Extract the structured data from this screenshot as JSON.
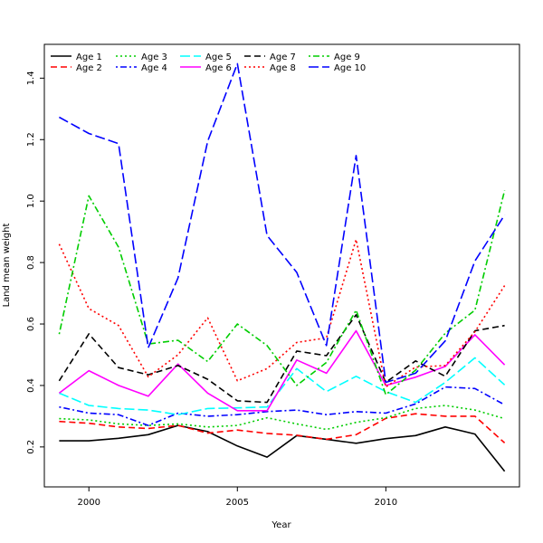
{
  "chart_data": {
    "type": "line",
    "title": "",
    "xlabel": "Year",
    "ylabel": "Land mean weight",
    "xlim": [
      1998.5,
      2014.5
    ],
    "ylim": [
      0.07,
      1.51
    ],
    "x_ticks": [
      2000,
      2005,
      2010
    ],
    "y_ticks": [
      0.2,
      0.4,
      0.6,
      0.8,
      1.0,
      1.2,
      1.4
    ],
    "y_tick_labels": [
      "0.2",
      "0.4",
      "0.6",
      "0.8",
      "1.0",
      "1.2",
      "1.4"
    ],
    "grid": false,
    "legend_position": "top-left",
    "x": [
      1999,
      2000,
      2001,
      2002,
      2003,
      2004,
      2005,
      2006,
      2007,
      2008,
      2009,
      2010,
      2011,
      2012,
      2013,
      2014
    ],
    "series": [
      {
        "name": "Age 1",
        "color": "#000000",
        "dash": "solid",
        "values": [
          0.22,
          0.22,
          0.228,
          0.24,
          0.27,
          0.25,
          0.203,
          0.167,
          0.237,
          0.225,
          0.212,
          0.227,
          0.237,
          0.265,
          0.242,
          0.121
        ]
      },
      {
        "name": "Age 2",
        "color": "#ff0000",
        "dash": "dashed",
        "values": [
          0.283,
          0.277,
          0.265,
          0.26,
          0.27,
          0.245,
          0.255,
          0.244,
          0.238,
          0.225,
          0.24,
          0.293,
          0.308,
          0.3,
          0.3,
          0.213
        ]
      },
      {
        "name": "Age 3",
        "color": "#00cd00",
        "dash": "dotted",
        "values": [
          0.292,
          0.288,
          0.275,
          0.27,
          0.275,
          0.265,
          0.27,
          0.295,
          0.275,
          0.257,
          0.28,
          0.295,
          0.325,
          0.335,
          0.32,
          0.292
        ]
      },
      {
        "name": "Age 4",
        "color": "#0000ff",
        "dash": "dotdash",
        "values": [
          0.33,
          0.31,
          0.305,
          0.27,
          0.31,
          0.3,
          0.305,
          0.315,
          0.32,
          0.305,
          0.315,
          0.31,
          0.34,
          0.395,
          0.39,
          0.337
        ]
      },
      {
        "name": "Age 5",
        "color": "#00ffff",
        "dash": "longdash",
        "values": [
          0.375,
          0.335,
          0.325,
          0.32,
          0.305,
          0.325,
          0.327,
          0.33,
          0.455,
          0.38,
          0.43,
          0.38,
          0.345,
          0.41,
          0.49,
          0.402
        ]
      },
      {
        "name": "Age 6",
        "color": "#ff00ff",
        "dash": "solid",
        "values": [
          0.375,
          0.448,
          0.4,
          0.365,
          0.47,
          0.375,
          0.318,
          0.318,
          0.483,
          0.44,
          0.578,
          0.4,
          0.427,
          0.462,
          0.565,
          0.467
        ]
      },
      {
        "name": "Age 7",
        "color": "#000000",
        "dash": "dashed",
        "values": [
          0.415,
          0.568,
          0.458,
          0.435,
          0.465,
          0.42,
          0.35,
          0.345,
          0.512,
          0.497,
          0.63,
          0.41,
          0.48,
          0.43,
          0.578,
          0.595
        ]
      },
      {
        "name": "Age 8",
        "color": "#ff0000",
        "dash": "dotted",
        "values": [
          0.86,
          0.65,
          0.595,
          0.428,
          0.5,
          0.62,
          0.415,
          0.455,
          0.54,
          0.555,
          0.875,
          0.395,
          0.46,
          0.465,
          0.575,
          0.725
        ]
      },
      {
        "name": "Age 9",
        "color": "#00cd00",
        "dash": "dotdash",
        "values": [
          0.567,
          1.017,
          0.85,
          0.535,
          0.547,
          0.478,
          0.6,
          0.53,
          0.4,
          0.475,
          0.645,
          0.37,
          0.45,
          0.57,
          0.645,
          1.035
        ]
      },
      {
        "name": "Age 10",
        "color": "#0000ff",
        "dash": "longdash",
        "values": [
          1.273,
          1.22,
          1.187,
          0.523,
          0.75,
          1.195,
          1.447,
          0.888,
          0.768,
          0.53,
          1.148,
          0.41,
          0.44,
          0.545,
          0.805,
          0.955
        ]
      }
    ]
  }
}
